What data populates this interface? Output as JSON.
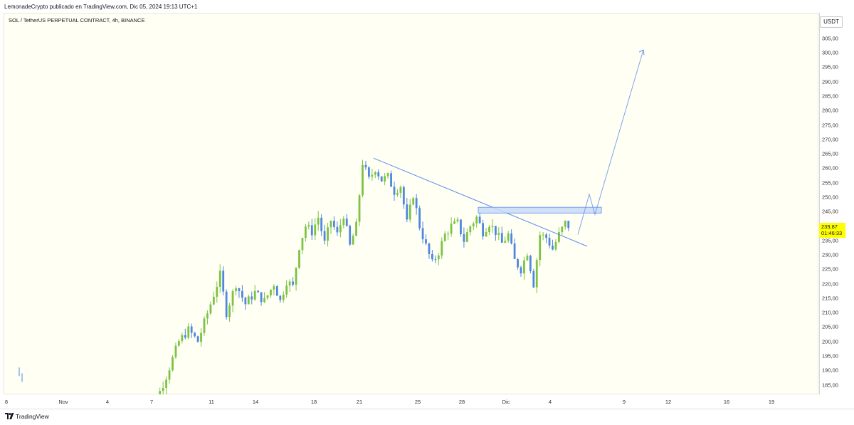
{
  "header": {
    "caption": "LemonadeCrypto publicado en TradingView.com, Dic 05, 2024 19:13 UTC+1"
  },
  "chart_title": "SOL / TetherUS PERPETUAL CONTRACT, 4h, BINANCE",
  "currency": "USDT",
  "last_price": "239,87",
  "countdown": "01:46:33",
  "footer": {
    "brand": "TradingView"
  },
  "colors": {
    "up": "#7cc243",
    "down": "#4f86e0",
    "line": "#5b8def",
    "zone_fill": "#c8dcf7",
    "zone_border": "#5b8def",
    "highlight": "#ffff00"
  },
  "chart_data": {
    "type": "candlestick",
    "timeframe": "4h",
    "y_ticks": [
      "305,00",
      "300,00",
      "295,00",
      "290,00",
      "285,00",
      "280,00",
      "275,00",
      "270,00",
      "265,00",
      "260,00",
      "255,00",
      "250,00",
      "245,00",
      "240,00",
      "235,00",
      "230,00",
      "225,00",
      "220,00",
      "215,00",
      "210,00",
      "205,00",
      "200,00",
      "195,00",
      "190,00",
      "185,00"
    ],
    "ylim": [
      181,
      312
    ],
    "x_ticks": [
      "8",
      "Nov",
      "4",
      "7",
      "11",
      "14",
      "18",
      "21",
      "25",
      "28",
      "Dic",
      "4",
      "9",
      "12",
      "16",
      "19"
    ],
    "anchors": [
      [
        0,
        172
      ],
      [
        5,
        180
      ],
      [
        8,
        188
      ],
      [
        12,
        200
      ],
      [
        15,
        204
      ],
      [
        18,
        200
      ],
      [
        22,
        213
      ],
      [
        25,
        223
      ],
      [
        27,
        210
      ],
      [
        30,
        220
      ],
      [
        33,
        213
      ],
      [
        36,
        217
      ],
      [
        39,
        214
      ],
      [
        42,
        220
      ],
      [
        44,
        214
      ],
      [
        46,
        221
      ],
      [
        48,
        219
      ],
      [
        50,
        233
      ],
      [
        52,
        240
      ],
      [
        54,
        238
      ],
      [
        56,
        243
      ],
      [
        58,
        234
      ],
      [
        60,
        242
      ],
      [
        62,
        237
      ],
      [
        64,
        244
      ],
      [
        66,
        233
      ],
      [
        68,
        240
      ],
      [
        70,
        262
      ],
      [
        72,
        256
      ],
      [
        74,
        260
      ],
      [
        76,
        256
      ],
      [
        78,
        257
      ],
      [
        80,
        252
      ],
      [
        82,
        254
      ],
      [
        84,
        241
      ],
      [
        86,
        251
      ],
      [
        88,
        240
      ],
      [
        90,
        233
      ],
      [
        92,
        227
      ],
      [
        94,
        231
      ],
      [
        96,
        237
      ],
      [
        98,
        240
      ],
      [
        100,
        241
      ],
      [
        102,
        235
      ],
      [
        104,
        240
      ],
      [
        106,
        243
      ],
      [
        108,
        238
      ],
      [
        110,
        241
      ],
      [
        112,
        238
      ],
      [
        114,
        234
      ],
      [
        116,
        237
      ],
      [
        118,
        228
      ],
      [
        120,
        225
      ],
      [
        122,
        231
      ],
      [
        124,
        220
      ],
      [
        126,
        237
      ],
      [
        128,
        236
      ],
      [
        130,
        232
      ],
      [
        132,
        237
      ],
      [
        134,
        241
      ],
      [
        135,
        240
      ]
    ],
    "trendline": {
      "from": [
        0,
        263.5
      ],
      "to": [
        42,
        233
      ]
    },
    "resistance_zone": {
      "x_range": [
        22,
        47
      ],
      "y_range": [
        244.5,
        246.5
      ]
    },
    "projection": {
      "points": [
        [
          30,
          237
        ],
        [
          34,
          251
        ],
        [
          38,
          244
        ],
        [
          48,
          301
        ]
      ],
      "end_price": 300
    }
  }
}
